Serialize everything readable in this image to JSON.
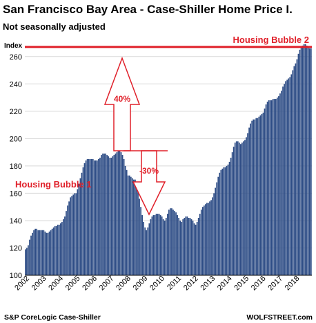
{
  "header": {
    "title": "San Francisco Bay Area - Case-Shiller Home Price I.",
    "subtitle": "Not seasonally adjusted"
  },
  "footer": {
    "source": "S&P CoreLogic Case-Shiller",
    "brand": "WOLFSTREET.com"
  },
  "annotations": {
    "bubble1": "Housing Bubble 1",
    "bubble2": "Housing Bubble 2",
    "rise": "40%",
    "drop": "-30%"
  },
  "colors": {
    "bar": "#2e4d86",
    "accent": "#e0202a",
    "grid": "#d9d9d9"
  },
  "chart_data": {
    "type": "bar",
    "ylabel": "Index",
    "ylim": [
      100,
      270
    ],
    "yticks": [
      100,
      120,
      140,
      160,
      180,
      200,
      220,
      240,
      260
    ],
    "xticks": [
      "2002",
      "2003",
      "2004",
      "2005",
      "2006",
      "2007",
      "2008",
      "2009",
      "2010",
      "2011",
      "2012",
      "2013",
      "2014",
      "2015",
      "2016",
      "2017",
      "2018"
    ],
    "x_start": "2002-01",
    "frequency": "monthly",
    "reference_line": 267,
    "grid": true,
    "values": [
      119,
      120,
      122,
      126,
      129,
      131,
      133,
      134,
      134,
      133,
      133,
      133,
      133,
      133,
      132,
      131,
      131,
      132,
      133,
      134,
      135,
      136,
      136,
      137,
      137,
      138,
      139,
      141,
      143,
      147,
      151,
      154,
      157,
      158,
      159,
      160,
      160,
      163,
      167,
      171,
      175,
      179,
      182,
      184,
      185,
      185,
      185,
      185,
      185,
      184,
      184,
      184,
      185,
      186,
      188,
      189,
      189,
      189,
      188,
      187,
      186,
      186,
      187,
      188,
      189,
      190,
      191,
      191,
      190,
      188,
      185,
      180,
      177,
      173,
      173,
      172,
      171,
      170,
      170,
      166,
      161,
      156,
      150,
      144,
      139,
      135,
      133,
      135,
      138,
      141,
      143,
      144,
      144,
      145,
      145,
      145,
      144,
      143,
      141,
      140,
      142,
      145,
      148,
      149,
      149,
      148,
      147,
      146,
      144,
      142,
      140,
      139,
      141,
      142,
      143,
      143,
      142,
      142,
      141,
      140,
      138,
      137,
      139,
      142,
      145,
      148,
      150,
      151,
      152,
      153,
      153,
      154,
      155,
      157,
      160,
      164,
      168,
      172,
      175,
      177,
      178,
      179,
      179,
      180,
      181,
      183,
      186,
      190,
      194,
      197,
      198,
      198,
      197,
      196,
      197,
      198,
      199,
      201,
      204,
      208,
      211,
      213,
      214,
      214,
      215,
      215,
      216,
      217,
      218,
      219,
      222,
      225,
      227,
      228,
      228,
      228,
      229,
      229,
      229,
      230,
      231,
      233,
      235,
      238,
      240,
      242,
      243,
      244,
      245,
      247,
      250,
      253,
      255,
      258,
      262,
      265,
      267,
      268,
      269,
      269,
      268,
      267,
      266,
      266
    ]
  }
}
